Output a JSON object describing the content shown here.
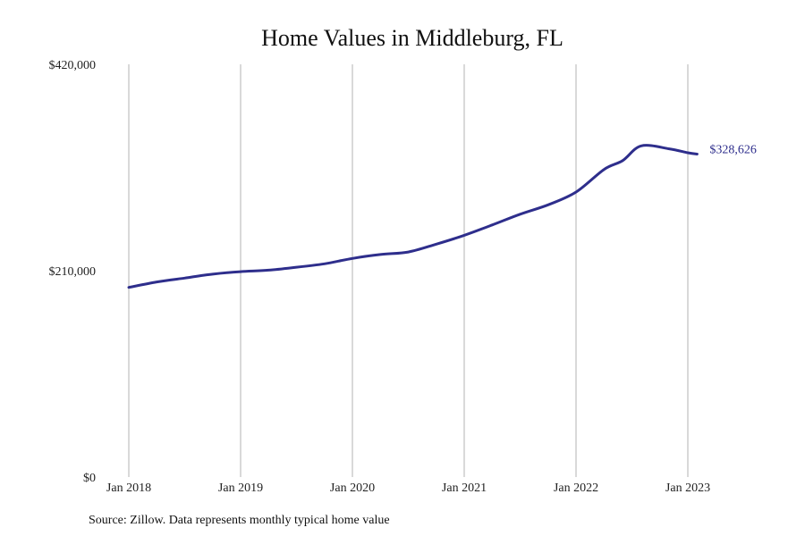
{
  "chart_data": {
    "type": "line",
    "title": "Home Values in Middleburg, FL",
    "xlabel": "",
    "ylabel": "",
    "ylim": [
      0,
      420000
    ],
    "xlim": [
      "2018-01",
      "2023-01"
    ],
    "grid": "vertical",
    "yticks": [
      {
        "value": 0,
        "label": "$0"
      },
      {
        "value": 210000,
        "label": "$210,000"
      },
      {
        "value": 420000,
        "label": "$420,000"
      }
    ],
    "xticks": [
      {
        "value": "2018-01",
        "label": "Jan 2018"
      },
      {
        "value": "2019-01",
        "label": "Jan 2019"
      },
      {
        "value": "2020-01",
        "label": "Jan 2020"
      },
      {
        "value": "2021-01",
        "label": "Jan 2021"
      },
      {
        "value": "2022-01",
        "label": "Jan 2022"
      },
      {
        "value": "2023-01",
        "label": "Jan 2023"
      }
    ],
    "series": [
      {
        "color": "#2e2e8c",
        "end_label": "$328,626",
        "points": [
          {
            "x": "2018-01",
            "y": 193000
          },
          {
            "x": "2018-04",
            "y": 198500
          },
          {
            "x": "2018-07",
            "y": 202500
          },
          {
            "x": "2018-10",
            "y": 206500
          },
          {
            "x": "2019-01",
            "y": 209000
          },
          {
            "x": "2019-04",
            "y": 210500
          },
          {
            "x": "2019-07",
            "y": 213500
          },
          {
            "x": "2019-10",
            "y": 217000
          },
          {
            "x": "2020-01",
            "y": 222500
          },
          {
            "x": "2020-04",
            "y": 226500
          },
          {
            "x": "2020-07",
            "y": 229000
          },
          {
            "x": "2020-10",
            "y": 237000
          },
          {
            "x": "2021-01",
            "y": 246000
          },
          {
            "x": "2021-04",
            "y": 256500
          },
          {
            "x": "2021-07",
            "y": 267500
          },
          {
            "x": "2021-10",
            "y": 277000
          },
          {
            "x": "2022-01",
            "y": 290000
          },
          {
            "x": "2022-04",
            "y": 313000
          },
          {
            "x": "2022-06",
            "y": 322000
          },
          {
            "x": "2022-08",
            "y": 337000
          },
          {
            "x": "2022-11",
            "y": 334000
          },
          {
            "x": "2023-01",
            "y": 330000
          },
          {
            "x": "2023-02",
            "y": 328626
          }
        ]
      }
    ]
  },
  "footer": {
    "source": "Source: Zillow. Data represents monthly typical home value"
  }
}
